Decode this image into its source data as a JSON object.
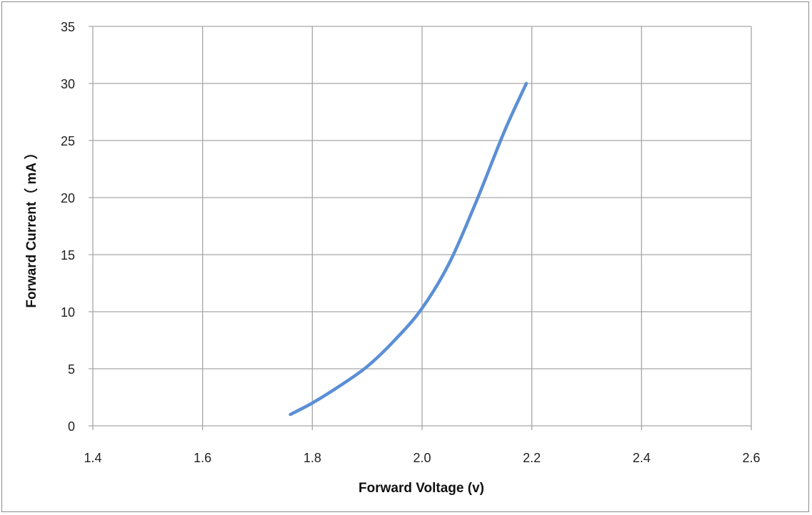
{
  "chart_data": {
    "type": "line",
    "title": "",
    "xlabel": "Forward Voltage (v)",
    "ylabel": "Forward Current（ mA ）",
    "xlim": [
      1.4,
      2.6
    ],
    "ylim": [
      0,
      35
    ],
    "x_ticks": [
      "1.4",
      "1.6",
      "1.8",
      "2.0",
      "2.2",
      "2.4",
      "2.6"
    ],
    "y_ticks": [
      "0",
      "5",
      "10",
      "15",
      "20",
      "25",
      "30",
      "35"
    ],
    "grid": true,
    "legend": "none",
    "series": [
      {
        "color": "#5b8fd6",
        "x": [
          1.76,
          1.8,
          1.85,
          1.9,
          1.95,
          2.0,
          2.05,
          2.1,
          2.15,
          2.19
        ],
        "y": [
          1,
          2,
          3.5,
          5.2,
          7.5,
          10.3,
          14.3,
          19.8,
          25.8,
          30
        ]
      }
    ],
    "colors": {
      "grid": "#a6a6a6",
      "line": "#5b8fd6"
    }
  }
}
